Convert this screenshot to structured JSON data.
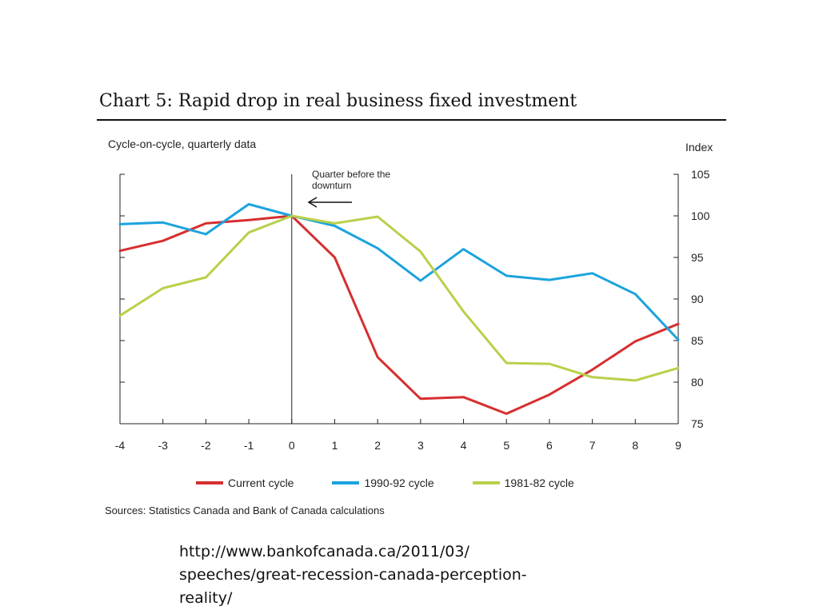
{
  "header": {
    "title": "Chart 5: Rapid drop in real business fixed investment",
    "subtitle": "Cycle-on-cycle, quarterly data",
    "unit": "Index"
  },
  "annotation": {
    "line1": "Quarter before the",
    "line2": "downturn"
  },
  "source": "Sources: Statistics Canada and Bank of Canada calculations",
  "url_lines": [
    "http://www.bankofcanada.ca/2011/03/",
    "speeches/great-recession-canada-perception-",
    "reality/"
  ],
  "chart_data": {
    "type": "line",
    "title": "Chart 5: Rapid drop in real business fixed investment",
    "xlabel": "",
    "ylabel": "Index",
    "x": [
      -4,
      -3,
      -2,
      -1,
      0,
      1,
      2,
      3,
      4,
      5,
      6,
      7,
      8,
      9
    ],
    "xlim": [
      -4,
      9
    ],
    "ylim": [
      75,
      105
    ],
    "yticks": [
      75,
      80,
      85,
      90,
      95,
      100,
      105
    ],
    "y_axis_side": "right",
    "reference_line_x": 0,
    "series": [
      {
        "name": "Current cycle",
        "color": "#d62f2f",
        "values": [
          95.8,
          97.0,
          99.1,
          99.5,
          100.0,
          95.0,
          83.0,
          78.0,
          78.2,
          76.2,
          78.5,
          81.5,
          84.9,
          87.0
        ]
      },
      {
        "name": "1990-92 cycle",
        "color": "#1ba3dd",
        "values": [
          99.0,
          99.2,
          97.8,
          101.4,
          100.0,
          98.8,
          96.1,
          92.2,
          96.0,
          92.8,
          92.3,
          93.1,
          90.6,
          85.1
        ]
      },
      {
        "name": "1981-82 cycle",
        "color": "#b7d14a",
        "values": [
          88.0,
          91.3,
          92.6,
          98.0,
          100.0,
          99.1,
          99.9,
          95.7,
          88.5,
          82.3,
          82.2,
          80.6,
          80.2,
          81.7
        ]
      }
    ],
    "legend_position": "bottom"
  }
}
